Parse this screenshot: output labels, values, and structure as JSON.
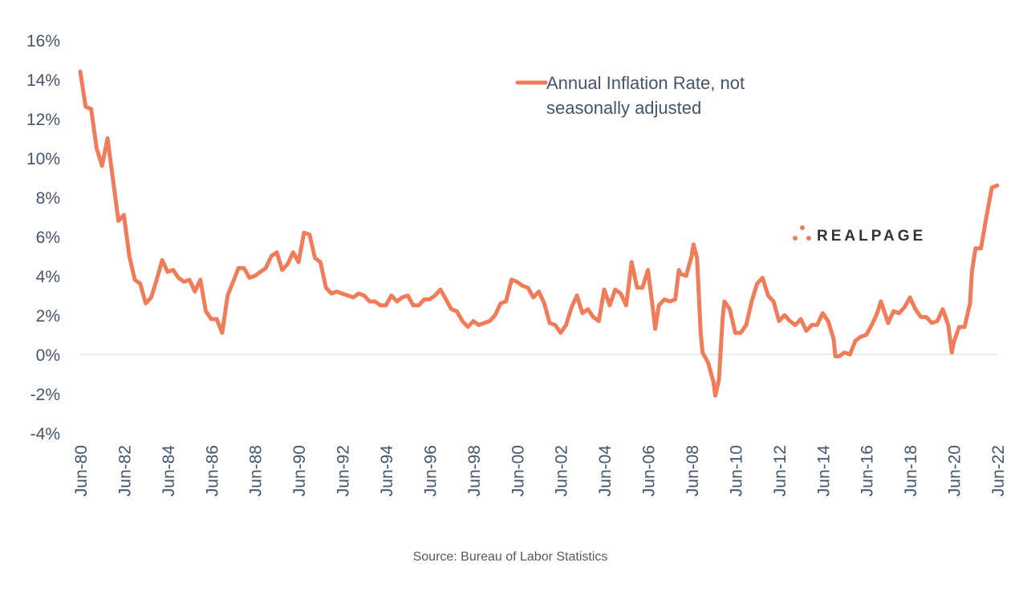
{
  "chart_data": {
    "type": "line",
    "title": "",
    "xlabel": "",
    "ylabel": "",
    "ylim": [
      -4,
      16
    ],
    "y_ticks": [
      "-4%",
      "-2%",
      "0%",
      "2%",
      "4%",
      "6%",
      "8%",
      "10%",
      "12%",
      "14%",
      "16%"
    ],
    "y_tick_values": [
      -4,
      -2,
      0,
      2,
      4,
      6,
      8,
      10,
      12,
      14,
      16
    ],
    "x_range": [
      "1980-06",
      "2022-06"
    ],
    "x_ticks": [
      "Jun-80",
      "Jun-82",
      "Jun-84",
      "Jun-86",
      "Jun-88",
      "Jun-90",
      "Jun-92",
      "Jun-94",
      "Jun-96",
      "Jun-98",
      "Jun-00",
      "Jun-02",
      "Jun-04",
      "Jun-06",
      "Jun-08",
      "Jun-10",
      "Jun-12",
      "Jun-14",
      "Jun-16",
      "Jun-18",
      "Jun-20",
      "Jun-22"
    ],
    "grid": "zero line only",
    "legend_position": "top-right",
    "series": [
      {
        "name": "Annual Inflation Rate, not seasonally adjusted",
        "color": "#f07c5a",
        "x": [
          "1980-06",
          "1980-09",
          "1980-12",
          "1981-03",
          "1981-06",
          "1981-09",
          "1981-12",
          "1982-03",
          "1982-06",
          "1982-09",
          "1982-12",
          "1983-03",
          "1983-06",
          "1983-09",
          "1983-12",
          "1984-03",
          "1984-06",
          "1984-09",
          "1984-12",
          "1985-03",
          "1985-06",
          "1985-09",
          "1985-12",
          "1986-03",
          "1986-06",
          "1986-09",
          "1986-12",
          "1987-03",
          "1987-06",
          "1987-09",
          "1987-12",
          "1988-03",
          "1988-06",
          "1988-09",
          "1988-12",
          "1989-03",
          "1989-06",
          "1989-09",
          "1989-12",
          "1990-03",
          "1990-06",
          "1990-09",
          "1990-12",
          "1991-03",
          "1991-06",
          "1991-09",
          "1991-12",
          "1992-03",
          "1992-06",
          "1992-09",
          "1992-12",
          "1993-03",
          "1993-06",
          "1993-09",
          "1993-12",
          "1994-03",
          "1994-06",
          "1994-09",
          "1994-12",
          "1995-03",
          "1995-06",
          "1995-09",
          "1995-12",
          "1996-03",
          "1996-06",
          "1996-09",
          "1996-12",
          "1997-03",
          "1997-06",
          "1997-09",
          "1997-12",
          "1998-03",
          "1998-06",
          "1998-09",
          "1998-12",
          "1999-03",
          "1999-06",
          "1999-09",
          "1999-12",
          "2000-03",
          "2000-06",
          "2000-09",
          "2000-12",
          "2001-03",
          "2001-06",
          "2001-09",
          "2001-12",
          "2002-03",
          "2002-06",
          "2002-09",
          "2002-12",
          "2003-03",
          "2003-06",
          "2003-09",
          "2003-12",
          "2004-03",
          "2004-06",
          "2004-09",
          "2004-12",
          "2005-03",
          "2005-06",
          "2005-09",
          "2005-12",
          "2006-03",
          "2006-06",
          "2006-09",
          "2006-10",
          "2006-12",
          "2007-03",
          "2007-06",
          "2007-09",
          "2007-11",
          "2007-12",
          "2008-03",
          "2008-06",
          "2008-07",
          "2008-09",
          "2008-11",
          "2008-12",
          "2009-03",
          "2009-06",
          "2009-07",
          "2009-09",
          "2009-11",
          "2009-12",
          "2010-03",
          "2010-06",
          "2010-09",
          "2010-12",
          "2011-03",
          "2011-06",
          "2011-09",
          "2011-12",
          "2012-03",
          "2012-06",
          "2012-09",
          "2012-12",
          "2013-03",
          "2013-06",
          "2013-09",
          "2013-12",
          "2014-03",
          "2014-06",
          "2014-09",
          "2014-12",
          "2015-01",
          "2015-03",
          "2015-06",
          "2015-09",
          "2015-12",
          "2016-03",
          "2016-06",
          "2016-09",
          "2016-12",
          "2017-02",
          "2017-06",
          "2017-09",
          "2017-12",
          "2018-03",
          "2018-06",
          "2018-09",
          "2018-12",
          "2019-03",
          "2019-06",
          "2019-09",
          "2019-12",
          "2020-03",
          "2020-05",
          "2020-06",
          "2020-09",
          "2020-12",
          "2021-03",
          "2021-04",
          "2021-06",
          "2021-09",
          "2021-12",
          "2022-03",
          "2022-06"
        ],
        "values": [
          14.4,
          12.6,
          12.5,
          10.5,
          9.6,
          11.0,
          8.9,
          6.8,
          7.1,
          5.0,
          3.8,
          3.6,
          2.6,
          2.9,
          3.8,
          4.8,
          4.2,
          4.3,
          3.9,
          3.7,
          3.8,
          3.2,
          3.8,
          2.2,
          1.8,
          1.8,
          1.1,
          3.0,
          3.7,
          4.4,
          4.4,
          3.9,
          4.0,
          4.2,
          4.4,
          5.0,
          5.2,
          4.3,
          4.6,
          5.2,
          4.7,
          6.2,
          6.1,
          4.9,
          4.7,
          3.4,
          3.1,
          3.2,
          3.1,
          3.0,
          2.9,
          3.1,
          3.0,
          2.7,
          2.7,
          2.5,
          2.5,
          3.0,
          2.7,
          2.9,
          3.0,
          2.5,
          2.5,
          2.8,
          2.8,
          3.0,
          3.3,
          2.8,
          2.3,
          2.2,
          1.7,
          1.4,
          1.7,
          1.5,
          1.6,
          1.7,
          2.0,
          2.6,
          2.7,
          3.8,
          3.7,
          3.5,
          3.4,
          2.9,
          3.2,
          2.6,
          1.6,
          1.5,
          1.1,
          1.5,
          2.4,
          3.0,
          2.1,
          2.3,
          1.9,
          1.7,
          3.3,
          2.5,
          3.3,
          3.1,
          2.5,
          4.7,
          3.4,
          3.4,
          4.3,
          2.1,
          1.3,
          2.5,
          2.8,
          2.7,
          2.8,
          4.3,
          4.1,
          4.0,
          5.0,
          5.6,
          4.9,
          1.1,
          0.1,
          -0.4,
          -1.4,
          -2.1,
          -1.3,
          1.8,
          2.7,
          2.3,
          1.1,
          1.1,
          1.5,
          2.7,
          3.6,
          3.9,
          3.0,
          2.7,
          1.7,
          2.0,
          1.7,
          1.5,
          1.8,
          1.2,
          1.5,
          1.5,
          2.1,
          1.7,
          0.8,
          -0.1,
          -0.1,
          0.1,
          0.0,
          0.7,
          0.9,
          1.0,
          1.5,
          2.1,
          2.7,
          1.6,
          2.2,
          2.1,
          2.4,
          2.9,
          2.3,
          1.9,
          1.9,
          1.6,
          1.7,
          2.3,
          1.5,
          0.1,
          0.6,
          1.4,
          1.4,
          2.6,
          4.2,
          5.4,
          5.4,
          7.0,
          8.5,
          8.6
        ]
      }
    ]
  },
  "logo": {
    "text": "REALPAGE",
    "colors": {
      "dots": "#f07c5a",
      "text": "#333333"
    }
  },
  "source": "Source: Bureau of Labor Statistics"
}
